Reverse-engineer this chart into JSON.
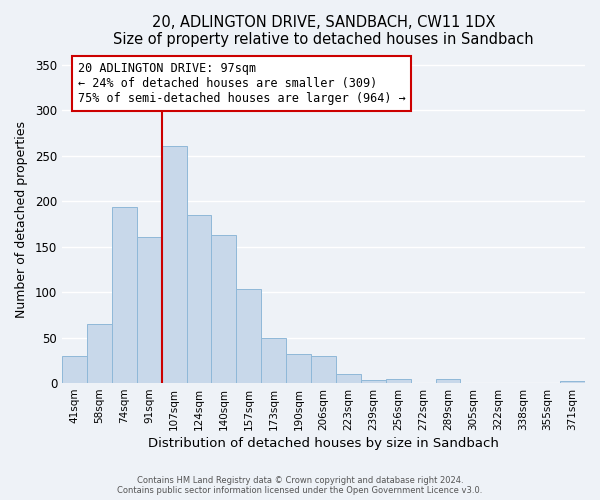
{
  "title": "20, ADLINGTON DRIVE, SANDBACH, CW11 1DX",
  "subtitle": "Size of property relative to detached houses in Sandbach",
  "xlabel": "Distribution of detached houses by size in Sandbach",
  "ylabel": "Number of detached properties",
  "bar_labels": [
    "41sqm",
    "58sqm",
    "74sqm",
    "91sqm",
    "107sqm",
    "124sqm",
    "140sqm",
    "157sqm",
    "173sqm",
    "190sqm",
    "206sqm",
    "223sqm",
    "239sqm",
    "256sqm",
    "272sqm",
    "289sqm",
    "305sqm",
    "322sqm",
    "338sqm",
    "355sqm",
    "371sqm"
  ],
  "bar_values": [
    30,
    65,
    193,
    160,
    260,
    185,
    163,
    103,
    50,
    32,
    30,
    10,
    3,
    5,
    0,
    5,
    0,
    0,
    0,
    0,
    2
  ],
  "bar_color": "#c8d8ea",
  "bar_edge_color": "#8fb8d8",
  "vline_x": 3.5,
  "vline_color": "#cc0000",
  "annotation_title": "20 ADLINGTON DRIVE: 97sqm",
  "annotation_line1": "← 24% of detached houses are smaller (309)",
  "annotation_line2": "75% of semi-detached houses are larger (964) →",
  "annotation_box_color": "#ffffff",
  "annotation_box_edge": "#cc0000",
  "ylim": [
    0,
    360
  ],
  "yticks": [
    0,
    50,
    100,
    150,
    200,
    250,
    300,
    350
  ],
  "footer1": "Contains HM Land Registry data © Crown copyright and database right 2024.",
  "footer2": "Contains public sector information licensed under the Open Government Licence v3.0.",
  "bg_color": "#eef2f7"
}
